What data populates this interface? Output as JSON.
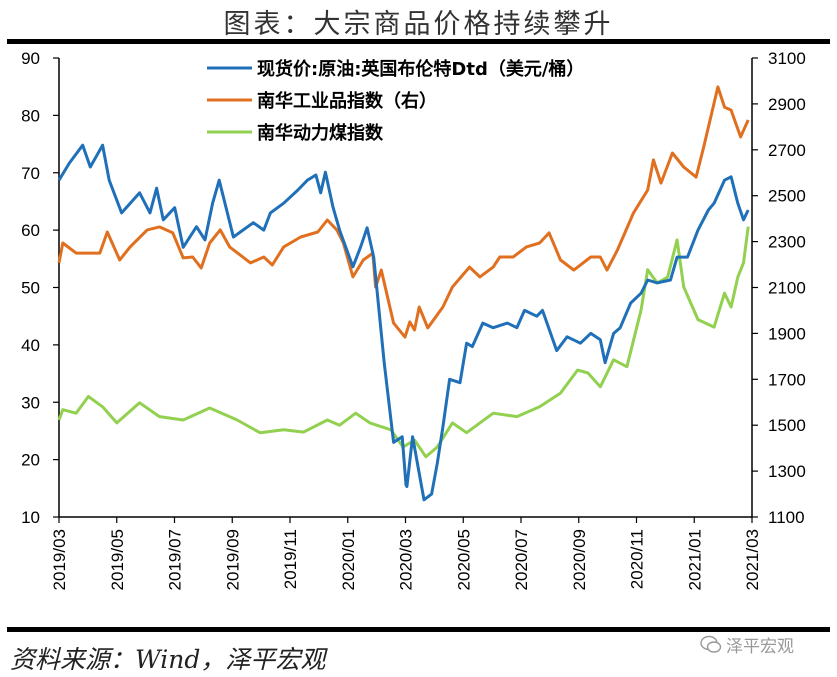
{
  "title": "图表：大宗商品价格持续攀升",
  "source": "资料来源：Wind，泽平宏观",
  "watermark": {
    "icon": "wechat-icon",
    "text": "泽平宏观"
  },
  "chart_data": {
    "type": "line",
    "title": "图表：大宗商品价格持续攀升",
    "x_ticks": [
      "2019/03",
      "2019/05",
      "2019/07",
      "2019/09",
      "2019/11",
      "2020/01",
      "2020/03",
      "2020/05",
      "2020/07",
      "2020/09",
      "2020/11",
      "2021/01",
      "2021/03"
    ],
    "x_range": [
      "2019-03-01",
      "2021-03-01"
    ],
    "y_left": {
      "range": [
        10,
        90
      ],
      "ticks": [
        "10",
        "20",
        "30",
        "40",
        "50",
        "60",
        "70",
        "80",
        "90"
      ]
    },
    "y_right": {
      "range": [
        1100,
        3100
      ],
      "ticks": [
        "1100",
        "1300",
        "1500",
        "1700",
        "1900",
        "2100",
        "2300",
        "2500",
        "2700",
        "2900",
        "3100"
      ]
    },
    "grid": false,
    "legend_placement": "top-center",
    "series": [
      {
        "name": "现货价:原油:英国布伦特Dtd（美元/桶）",
        "axis": "left",
        "color": "#1f70b8",
        "points": [
          [
            "2019-03-01",
            68.7
          ],
          [
            "2019-03-12",
            71.7
          ],
          [
            "2019-03-26",
            74.8
          ],
          [
            "2019-04-03",
            71
          ],
          [
            "2019-04-16",
            74.8
          ],
          [
            "2019-04-23",
            68.7
          ],
          [
            "2019-05-06",
            63
          ],
          [
            "2019-05-25",
            66.5
          ],
          [
            "2019-06-05",
            63
          ],
          [
            "2019-06-12",
            67.3
          ],
          [
            "2019-06-19",
            61.8
          ],
          [
            "2019-07-01",
            63.9
          ],
          [
            "2019-07-10",
            57
          ],
          [
            "2019-07-24",
            60.6
          ],
          [
            "2019-08-02",
            58.3
          ],
          [
            "2019-08-10",
            64.7
          ],
          [
            "2019-08-17",
            68.7
          ],
          [
            "2019-09-01",
            58.8
          ],
          [
            "2019-09-22",
            61.3
          ],
          [
            "2019-10-03",
            60
          ],
          [
            "2019-10-10",
            63
          ],
          [
            "2019-10-24",
            64.7
          ],
          [
            "2019-11-08",
            67
          ],
          [
            "2019-11-18",
            68.7
          ],
          [
            "2019-11-27",
            69.6
          ],
          [
            "2019-12-02",
            66.5
          ],
          [
            "2019-12-07",
            70.1
          ],
          [
            "2019-12-15",
            64
          ],
          [
            "2019-12-22",
            60
          ],
          [
            "2020-01-05",
            53.6
          ],
          [
            "2020-01-13",
            57
          ],
          [
            "2020-01-20",
            60.4
          ],
          [
            "2020-01-27",
            55.3
          ],
          [
            "2020-02-07",
            36.9
          ],
          [
            "2020-02-17",
            23
          ],
          [
            "2020-02-26",
            24
          ],
          [
            "2020-03-01",
            15.6
          ],
          [
            "2020-03-02",
            15.3
          ],
          [
            "2020-03-08",
            24
          ],
          [
            "2020-03-20",
            13
          ],
          [
            "2020-03-28",
            14
          ],
          [
            "2020-04-03",
            19.4
          ],
          [
            "2020-04-09",
            25.7
          ],
          [
            "2020-04-16",
            34
          ],
          [
            "2020-04-27",
            33.4
          ],
          [
            "2020-05-04",
            40.3
          ],
          [
            "2020-05-10",
            39.7
          ],
          [
            "2020-05-21",
            43.8
          ],
          [
            "2020-06-01",
            43
          ],
          [
            "2020-06-16",
            43.8
          ],
          [
            "2020-06-26",
            43
          ],
          [
            "2020-07-04",
            46
          ],
          [
            "2020-07-17",
            45
          ],
          [
            "2020-07-23",
            46
          ],
          [
            "2020-08-07",
            39
          ],
          [
            "2020-08-18",
            41.4
          ],
          [
            "2020-09-01",
            40.3
          ],
          [
            "2020-09-12",
            42
          ],
          [
            "2020-09-22",
            40.9
          ],
          [
            "2020-09-27",
            36.9
          ],
          [
            "2020-10-06",
            42
          ],
          [
            "2020-10-13",
            43
          ],
          [
            "2020-10-24",
            47.3
          ],
          [
            "2020-11-04",
            49
          ],
          [
            "2020-11-11",
            51.3
          ],
          [
            "2020-11-21",
            50.8
          ],
          [
            "2020-12-05",
            51.3
          ],
          [
            "2020-12-12",
            55.3
          ],
          [
            "2020-12-23",
            55.3
          ],
          [
            "2021-01-03",
            60
          ],
          [
            "2021-01-14",
            63.5
          ],
          [
            "2021-01-20",
            64.7
          ],
          [
            "2021-01-31",
            68.7
          ],
          [
            "2021-02-07",
            69.3
          ],
          [
            "2021-02-14",
            64.7
          ],
          [
            "2021-02-20",
            61.8
          ],
          [
            "2021-02-25",
            63.5
          ]
        ]
      },
      {
        "name": "南华工业品指数（右）",
        "axis": "right",
        "color": "#e07020",
        "points": [
          [
            "2019-03-01",
            2207
          ],
          [
            "2019-03-05",
            2294
          ],
          [
            "2019-03-19",
            2250
          ],
          [
            "2019-04-13",
            2250
          ],
          [
            "2019-04-21",
            2342
          ],
          [
            "2019-05-04",
            2220
          ],
          [
            "2019-05-15",
            2277
          ],
          [
            "2019-06-02",
            2351
          ],
          [
            "2019-06-15",
            2364
          ],
          [
            "2019-06-29",
            2338
          ],
          [
            "2019-07-10",
            2229
          ],
          [
            "2019-07-20",
            2233
          ],
          [
            "2019-07-29",
            2185
          ],
          [
            "2019-08-07",
            2294
          ],
          [
            "2019-08-18",
            2351
          ],
          [
            "2019-08-28",
            2277
          ],
          [
            "2019-09-19",
            2207
          ],
          [
            "2019-10-03",
            2233
          ],
          [
            "2019-10-12",
            2198
          ],
          [
            "2019-10-24",
            2277
          ],
          [
            "2019-11-11",
            2320
          ],
          [
            "2019-11-29",
            2342
          ],
          [
            "2019-12-09",
            2394
          ],
          [
            "2019-12-19",
            2351
          ],
          [
            "2019-12-26",
            2294
          ],
          [
            "2020-01-05",
            2146
          ],
          [
            "2020-01-16",
            2220
          ],
          [
            "2020-01-26",
            2250
          ],
          [
            "2020-01-29",
            2102
          ],
          [
            "2020-02-04",
            2176
          ],
          [
            "2020-02-17",
            1945
          ],
          [
            "2020-02-29",
            1884
          ],
          [
            "2020-03-05",
            1950
          ],
          [
            "2020-03-10",
            1915
          ],
          [
            "2020-03-15",
            2015
          ],
          [
            "2020-03-24",
            1924
          ],
          [
            "2020-04-09",
            2015
          ],
          [
            "2020-04-19",
            2102
          ],
          [
            "2020-05-07",
            2189
          ],
          [
            "2020-05-18",
            2146
          ],
          [
            "2020-06-01",
            2189
          ],
          [
            "2020-06-08",
            2233
          ],
          [
            "2020-06-22",
            2233
          ],
          [
            "2020-07-06",
            2277
          ],
          [
            "2020-07-20",
            2294
          ],
          [
            "2020-07-30",
            2338
          ],
          [
            "2020-08-11",
            2220
          ],
          [
            "2020-08-25",
            2176
          ],
          [
            "2020-09-12",
            2233
          ],
          [
            "2020-09-22",
            2233
          ],
          [
            "2020-09-29",
            2176
          ],
          [
            "2020-10-10",
            2263
          ],
          [
            "2020-10-27",
            2425
          ],
          [
            "2020-11-11",
            2525
          ],
          [
            "2020-11-17",
            2656
          ],
          [
            "2020-11-25",
            2555
          ],
          [
            "2020-12-07",
            2686
          ],
          [
            "2020-12-19",
            2625
          ],
          [
            "2021-01-01",
            2581
          ],
          [
            "2021-01-09",
            2712
          ],
          [
            "2021-01-24",
            2974
          ],
          [
            "2021-01-31",
            2886
          ],
          [
            "2021-02-07",
            2873
          ],
          [
            "2021-02-17",
            2756
          ],
          [
            "2021-02-25",
            2830
          ]
        ]
      },
      {
        "name": "南华动力煤指数",
        "axis": "left",
        "color": "#92d050",
        "points": [
          [
            "2019-03-01",
            26.9
          ],
          [
            "2019-03-05",
            28.7
          ],
          [
            "2019-03-19",
            28.1
          ],
          [
            "2019-04-01",
            31
          ],
          [
            "2019-04-16",
            29.2
          ],
          [
            "2019-05-01",
            26.4
          ],
          [
            "2019-05-25",
            29.9
          ],
          [
            "2019-06-15",
            27.5
          ],
          [
            "2019-07-10",
            26.9
          ],
          [
            "2019-08-07",
            29
          ],
          [
            "2019-09-05",
            26.9
          ],
          [
            "2019-09-29",
            24.7
          ],
          [
            "2019-10-24",
            25.2
          ],
          [
            "2019-11-14",
            24.8
          ],
          [
            "2019-12-09",
            26.9
          ],
          [
            "2019-12-22",
            26
          ],
          [
            "2020-01-08",
            28.1
          ],
          [
            "2020-01-23",
            26.4
          ],
          [
            "2020-02-14",
            25.2
          ],
          [
            "2020-02-27",
            22.2
          ],
          [
            "2020-03-10",
            23.4
          ],
          [
            "2020-03-22",
            20.5
          ],
          [
            "2020-04-03",
            22.2
          ],
          [
            "2020-04-19",
            26.4
          ],
          [
            "2020-05-04",
            24.7
          ],
          [
            "2020-05-18",
            26.4
          ],
          [
            "2020-06-01",
            28.1
          ],
          [
            "2020-06-26",
            27.5
          ],
          [
            "2020-07-20",
            29.2
          ],
          [
            "2020-08-11",
            31.6
          ],
          [
            "2020-08-29",
            35.6
          ],
          [
            "2020-09-09",
            35.1
          ],
          [
            "2020-09-22",
            32.7
          ],
          [
            "2020-10-06",
            37.4
          ],
          [
            "2020-10-20",
            36.2
          ],
          [
            "2020-11-04",
            46.1
          ],
          [
            "2020-11-11",
            53.1
          ],
          [
            "2020-11-21",
            50.8
          ],
          [
            "2020-12-02",
            51.8
          ],
          [
            "2020-12-12",
            58.3
          ],
          [
            "2020-12-19",
            50.1
          ],
          [
            "2021-01-03",
            44.4
          ],
          [
            "2021-01-20",
            43.1
          ],
          [
            "2021-01-31",
            49
          ],
          [
            "2021-02-07",
            46.6
          ],
          [
            "2021-02-14",
            51.8
          ],
          [
            "2021-02-20",
            54.3
          ],
          [
            "2021-02-25",
            60.6
          ]
        ]
      }
    ]
  }
}
